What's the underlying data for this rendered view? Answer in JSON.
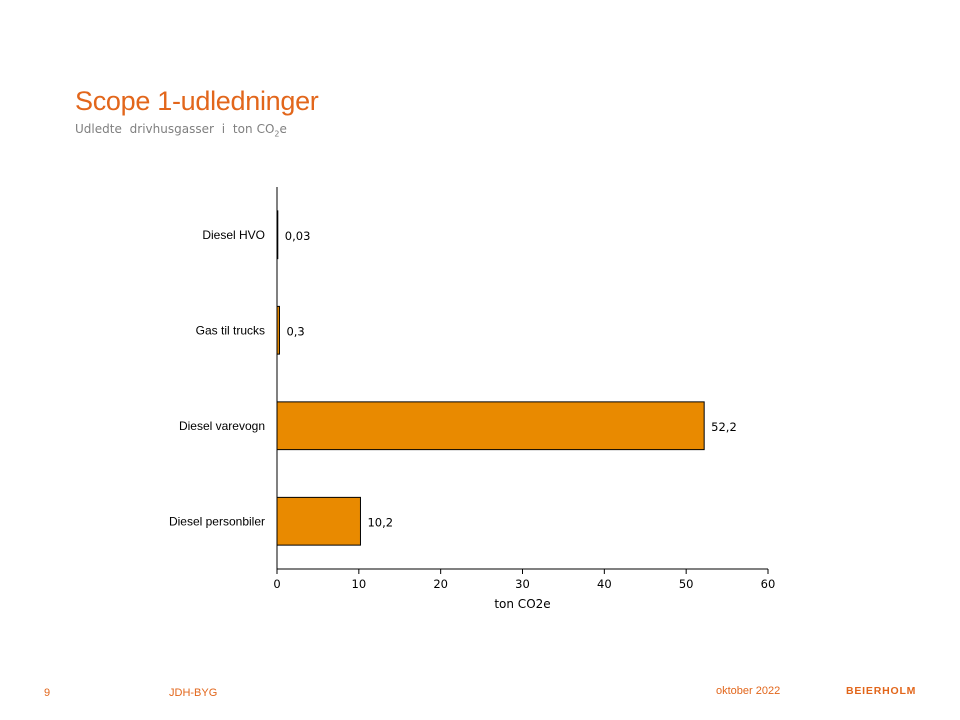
{
  "header": {
    "title": "Scope 1-udledninger",
    "subtitle_words": [
      "Udledte",
      "drivhusgasser",
      "i",
      "ton"
    ],
    "subtitle_unit": "CO",
    "subtitle_sub": "2",
    "subtitle_suffix": "e"
  },
  "chart_data": {
    "type": "bar",
    "orientation": "horizontal",
    "categories": [
      "Diesel HVO",
      "Gas til trucks",
      "Diesel varevogn",
      "Diesel personbiler"
    ],
    "values": [
      0.03,
      0.3,
      52.2,
      10.2
    ],
    "data_labels": [
      "0,03",
      "0,3",
      "52,2",
      "10,2"
    ],
    "xlabel": "ton CO2e",
    "ylabel": "",
    "xlim": [
      0,
      60
    ],
    "xticks": [
      0,
      10,
      20,
      30,
      40,
      50,
      60
    ],
    "bar_color": "#E98A00",
    "grid": false,
    "legend": "none"
  },
  "footer": {
    "page_number": "9",
    "client": "JDH-BYG",
    "date": "oktober 2022",
    "logo_text": "BEIERHOLM"
  },
  "colors": {
    "accent": "#E2661B",
    "bar": "#E98A00",
    "subtitle": "#7F7F7F"
  }
}
